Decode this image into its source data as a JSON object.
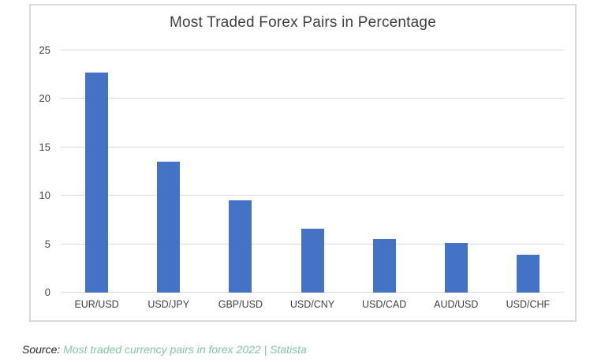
{
  "chart_data": {
    "type": "bar",
    "title": "Most Traded Forex Pairs in Percentage",
    "categories": [
      "EUR/USD",
      "USD/JPY",
      "GBP/USD",
      "USD/CNY",
      "USD/CAD",
      "AUD/USD",
      "USD/CHF"
    ],
    "values": [
      22.7,
      13.5,
      9.5,
      6.6,
      5.5,
      5.1,
      3.9
    ],
    "xlabel": "",
    "ylabel": "",
    "ylim": [
      0,
      25
    ],
    "yticks": [
      0,
      5,
      10,
      15,
      20,
      25
    ],
    "grid": true,
    "legend": false
  },
  "source": {
    "prefix": "Source:",
    "link_text": "Most traded currency pairs in forex 2022 | Statista"
  },
  "colors": {
    "bar": "#4472C4",
    "gridline": "#D9D9D9",
    "frame_border": "#D9D9D9",
    "title_text": "#404040",
    "axis_text": "#404040",
    "source_text": "#262626",
    "source_link": "#7EC9A1"
  }
}
